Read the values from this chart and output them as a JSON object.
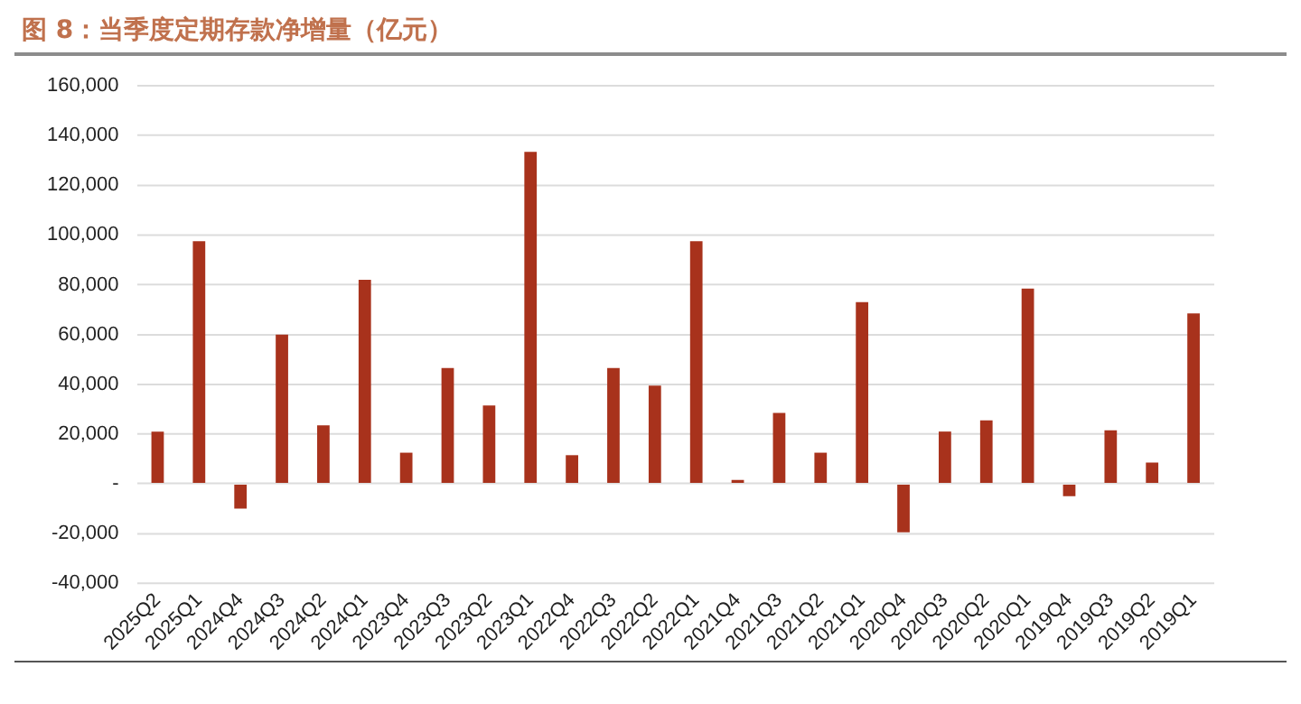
{
  "chart_data": {
    "type": "bar",
    "title": "图 8：当季度定期存款净增量（亿元）",
    "categories": [
      "2025Q2",
      "2025Q1",
      "2024Q4",
      "2024Q3",
      "2024Q2",
      "2024Q1",
      "2023Q4",
      "2023Q3",
      "2023Q2",
      "2023Q1",
      "2022Q4",
      "2022Q3",
      "2022Q2",
      "2022Q1",
      "2021Q4",
      "2021Q3",
      "2021Q2",
      "2021Q1",
      "2020Q4",
      "2020Q3",
      "2020Q2",
      "2020Q1",
      "2019Q4",
      "2019Q3",
      "2019Q2",
      "2019Q1"
    ],
    "values": [
      21000,
      97500,
      -10000,
      60000,
      23500,
      82000,
      12500,
      46500,
      31500,
      133500,
      11500,
      46500,
      39500,
      97500,
      1500,
      28500,
      12500,
      73000,
      -19500,
      21000,
      25500,
      78500,
      -5000,
      21500,
      8500,
      68500
    ],
    "color": "#a8321c",
    "ylim": [
      -40000,
      160000
    ],
    "yticks": [
      {
        "value": -40000,
        "label": "-40,000"
      },
      {
        "value": -20000,
        "label": "-20,000"
      },
      {
        "value": 0,
        "label": "-"
      },
      {
        "value": 20000,
        "label": "20,000"
      },
      {
        "value": 40000,
        "label": "40,000"
      },
      {
        "value": 60000,
        "label": "60,000"
      },
      {
        "value": 80000,
        "label": "80,000"
      },
      {
        "value": 100000,
        "label": "100,000"
      },
      {
        "value": 120000,
        "label": "120,000"
      },
      {
        "value": 140000,
        "label": "140,000"
      },
      {
        "value": 160000,
        "label": "160,000"
      }
    ],
    "grid": "y",
    "legend": false
  }
}
